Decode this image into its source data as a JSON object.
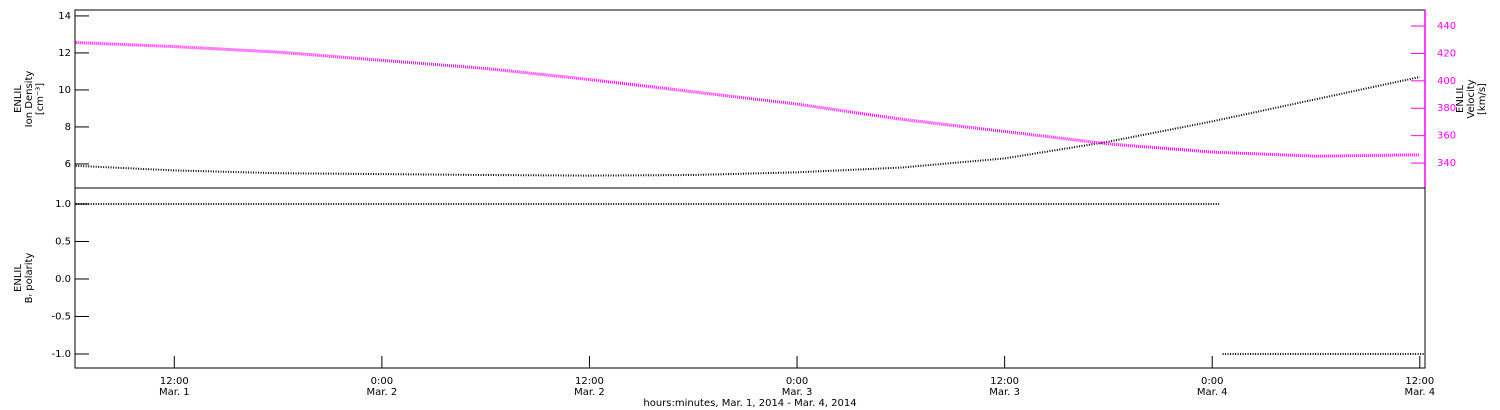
{
  "chart_data": [
    {
      "type": "line",
      "ylabel": [
        "ENLIL",
        "Ion Density",
        "[cm⁻³]"
      ],
      "y2label": [
        "ENLIL",
        "Velocity",
        "[km/s]"
      ],
      "xlim": [
        6.26,
        84.3
      ],
      "ylim": [
        4.7,
        14.32
      ],
      "yticks": [
        6,
        8,
        10,
        12,
        14
      ],
      "y2lim": [
        321.8,
        451.7
      ],
      "y2ticks": [
        340,
        360,
        380,
        400,
        420,
        440
      ],
      "x": [
        6.3,
        12,
        18,
        24,
        30,
        36,
        42,
        48,
        54,
        60,
        66,
        72,
        78,
        84
      ],
      "series": [
        {
          "color": "#000000",
          "values": [
            5.9,
            5.65,
            5.5,
            5.45,
            5.4,
            5.37,
            5.4,
            5.55,
            5.8,
            6.3,
            7.2,
            8.3,
            9.5,
            10.7
          ]
        },
        {
          "color": "#ff00ff",
          "axis": "y2",
          "values": [
            428,
            425,
            421,
            415,
            409,
            401,
            392,
            383,
            372,
            363,
            354,
            348,
            345,
            346
          ]
        }
      ]
    },
    {
      "type": "line",
      "ylabel": [
        "ENLIL",
        "Bᵣ polarity"
      ],
      "xlabel": "hours:minutes, Mar.  1, 2014 - Mar.  4, 2014",
      "xlim": [
        6.26,
        84.3
      ],
      "xticks": [
        {
          "value": 12,
          "label": "12:00"
        },
        {
          "value": 24,
          "label": "0:00"
        },
        {
          "value": 36,
          "label": "12:00"
        },
        {
          "value": 48,
          "label": "0:00"
        },
        {
          "value": 60,
          "label": "12:00"
        },
        {
          "value": 72,
          "label": "0:00"
        },
        {
          "value": 84,
          "label": "12:00"
        }
      ],
      "xtick_dates": [
        "Mar. 1",
        "Mar. 2",
        "Mar. 2",
        "Mar. 3",
        "Mar. 3",
        "Mar. 4",
        "Mar. 4"
      ],
      "ylim": [
        -1.187,
        1.213
      ],
      "yticks": [
        {
          "value": -1,
          "label": "-1.0"
        },
        -0.5,
        {
          "value": 0,
          "label": "0.0"
        },
        0.5,
        {
          "value": 1,
          "label": "1.0"
        }
      ],
      "x": [
        6.3,
        72.4,
        72.5,
        72.6,
        84.3
      ],
      "series": [
        {
          "color": "#000000",
          "values": [
            1,
            1,
            null,
            -1,
            -1
          ]
        }
      ]
    }
  ]
}
